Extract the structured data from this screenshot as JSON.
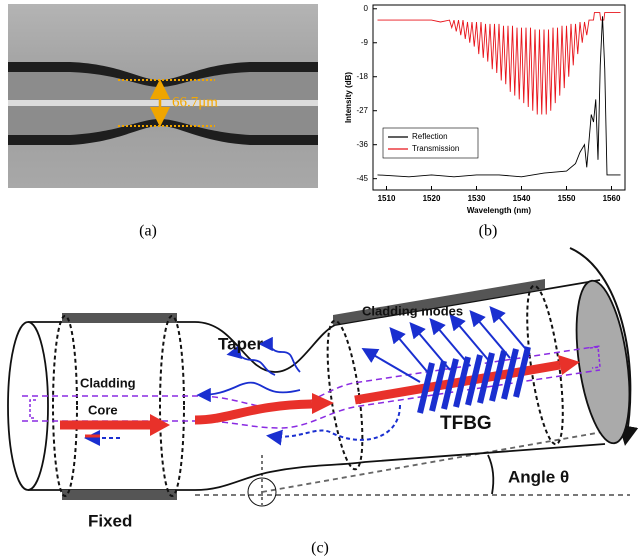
{
  "panel_a": {
    "measurement": "66.7μm",
    "caption": "(a)"
  },
  "chart_data": {
    "type": "line",
    "x_label": "Wavelength (nm)",
    "y_label": "Intensity (dB)",
    "caption": "(b)",
    "xlim": [
      1507,
      1563
    ],
    "ylim": [
      -48,
      1
    ],
    "xticks": [
      1510,
      1520,
      1530,
      1540,
      1550,
      1560
    ],
    "yticks": [
      0,
      -9,
      -18,
      -27,
      -36,
      -45
    ],
    "legend": "lower left",
    "series": [
      {
        "name": "Reflection",
        "color": "#000000",
        "x": [
          1508,
          1515,
          1520,
          1525,
          1530,
          1535,
          1540,
          1545,
          1550,
          1552,
          1553,
          1554,
          1554.5,
          1555,
          1555.5,
          1556,
          1556.5,
          1557,
          1557.5,
          1558,
          1558.5,
          1559,
          1562
        ],
        "values": [
          -44,
          -44.5,
          -44,
          -44.5,
          -44,
          -44,
          -44.5,
          -43.5,
          -43,
          -41,
          -38,
          -36,
          -42,
          -35,
          -28,
          -30,
          -24,
          -40,
          -15,
          -2,
          -16,
          -44,
          -44
        ]
      },
      {
        "name": "Transmission",
        "color": "#e8141b",
        "x": [
          1508,
          1512,
          1516,
          1520,
          1522,
          1524,
          1524.5,
          1525,
          1525.5,
          1526,
          1526.5,
          1527,
          1527.5,
          1528,
          1528.5,
          1529,
          1529.5,
          1530,
          1530.5,
          1531,
          1531.5,
          1532,
          1532.5,
          1533,
          1533.5,
          1534,
          1534.5,
          1535,
          1535.5,
          1536,
          1536.5,
          1537,
          1537.5,
          1538,
          1538.5,
          1539,
          1539.5,
          1540,
          1540.5,
          1541,
          1541.5,
          1542,
          1542.5,
          1543,
          1543.5,
          1544,
          1544.5,
          1545,
          1545.5,
          1546,
          1546.5,
          1547,
          1547.5,
          1548,
          1548.5,
          1549,
          1549.5,
          1550,
          1550.5,
          1551,
          1551.5,
          1552,
          1552.5,
          1553,
          1553.5,
          1554,
          1554.5,
          1555,
          1556,
          1556.2,
          1557.4,
          1557.6,
          1558.3,
          1558.5,
          1562
        ],
        "values": [
          -3,
          -3,
          -3,
          -3,
          -3.5,
          -3,
          -5,
          -3,
          -6,
          -3,
          -7,
          -3,
          -8,
          -3.5,
          -9,
          -3.5,
          -10,
          -3.5,
          -12,
          -3.5,
          -13,
          -4,
          -14,
          -4,
          -16,
          -4,
          -17,
          -4,
          -19,
          -4.5,
          -20,
          -4.5,
          -22,
          -4.5,
          -23,
          -5,
          -24,
          -5,
          -25,
          -5,
          -26,
          -5,
          -27,
          -5.5,
          -28,
          -5.5,
          -28,
          -5.5,
          -28,
          -5.5,
          -27,
          -5,
          -25,
          -5,
          -23,
          -4.5,
          -21,
          -4.5,
          -18,
          -4,
          -15,
          -4,
          -12,
          -3.5,
          -9,
          -3.5,
          -7,
          -3,
          -3,
          -1,
          -1,
          -3,
          -3,
          -1,
          -1
        ]
      }
    ]
  },
  "panel_c": {
    "labels": {
      "taper": "Taper",
      "cladding_modes": "Cladding modes",
      "cladding": "Cladding",
      "core": "Core",
      "tfbg": "TFBG",
      "angle": "Angle θ",
      "fixed": "Fixed"
    },
    "caption": "(c)"
  }
}
